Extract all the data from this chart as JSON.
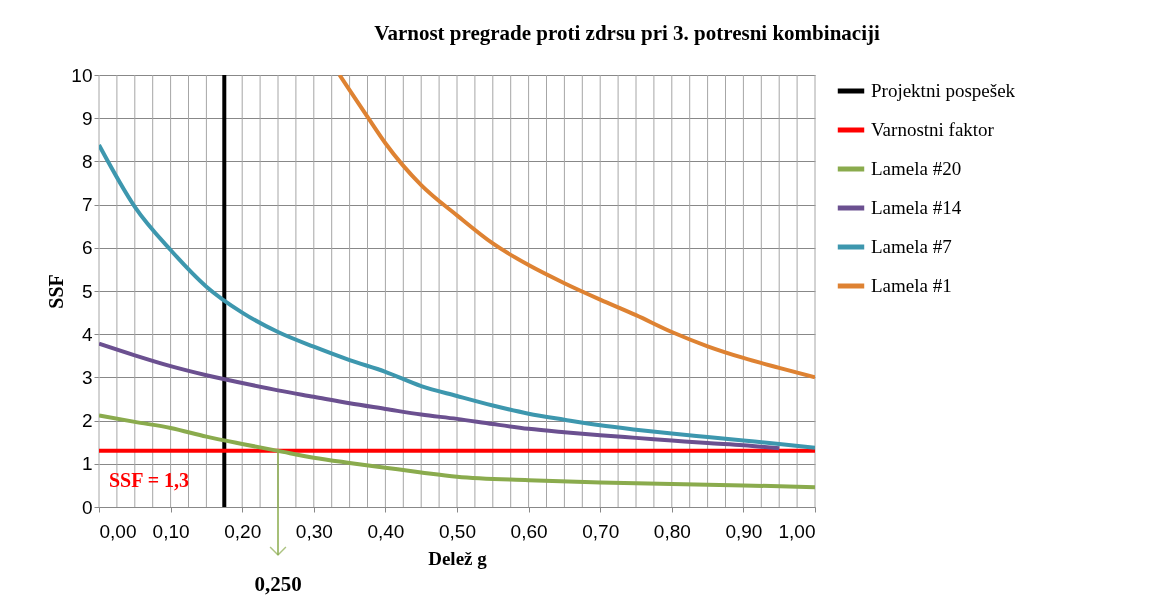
{
  "chart_data": {
    "type": "line",
    "title": "Varnost pregrade proti zdrsu pri 3. potresni kombinaciji",
    "xlabel": "Delež g",
    "ylabel": "SSF",
    "xlim": [
      0,
      1
    ],
    "ylim": [
      0,
      10
    ],
    "xticks": [
      {
        "value": 0,
        "label": "0,00"
      },
      {
        "value": 0.025,
        "label": null
      },
      {
        "value": 0.05,
        "label": null
      },
      {
        "value": 0.075,
        "label": null
      },
      {
        "value": 0.1,
        "label": "0,10"
      },
      {
        "value": 0.125,
        "label": null
      },
      {
        "value": 0.15,
        "label": null
      },
      {
        "value": 0.175,
        "label": null
      },
      {
        "value": 0.2,
        "label": "0,20"
      },
      {
        "value": 0.225,
        "label": null
      },
      {
        "value": 0.25,
        "label": null
      },
      {
        "value": 0.275,
        "label": null
      },
      {
        "value": 0.3,
        "label": "0,30"
      },
      {
        "value": 0.325,
        "label": null
      },
      {
        "value": 0.35,
        "label": null
      },
      {
        "value": 0.375,
        "label": null
      },
      {
        "value": 0.4,
        "label": "0,40"
      },
      {
        "value": 0.425,
        "label": null
      },
      {
        "value": 0.45,
        "label": null
      },
      {
        "value": 0.475,
        "label": null
      },
      {
        "value": 0.5,
        "label": "0,50"
      },
      {
        "value": 0.525,
        "label": null
      },
      {
        "value": 0.55,
        "label": null
      },
      {
        "value": 0.575,
        "label": null
      },
      {
        "value": 0.6,
        "label": "0,60"
      },
      {
        "value": 0.625,
        "label": null
      },
      {
        "value": 0.65,
        "label": null
      },
      {
        "value": 0.675,
        "label": null
      },
      {
        "value": 0.7,
        "label": "0,70"
      },
      {
        "value": 0.725,
        "label": null
      },
      {
        "value": 0.75,
        "label": null
      },
      {
        "value": 0.775,
        "label": null
      },
      {
        "value": 0.8,
        "label": "0,80"
      },
      {
        "value": 0.825,
        "label": null
      },
      {
        "value": 0.85,
        "label": null
      },
      {
        "value": 0.875,
        "label": null
      },
      {
        "value": 0.9,
        "label": "0,90"
      },
      {
        "value": 0.925,
        "label": null
      },
      {
        "value": 0.95,
        "label": null
      },
      {
        "value": 0.975,
        "label": null
      },
      {
        "value": 1,
        "label": "1,00"
      }
    ],
    "yticks": [
      0,
      1,
      2,
      3,
      4,
      5,
      6,
      7,
      8,
      9,
      10
    ],
    "grid": true,
    "legend": "right",
    "series": [
      {
        "name": "Projektni pospešek",
        "color": "#000000",
        "x": [
          0.175,
          0.175
        ],
        "values": [
          0,
          10
        ]
      },
      {
        "name": "Varnostni faktor",
        "color": "#ff0000",
        "x": [
          0,
          1
        ],
        "values": [
          1.3,
          1.3
        ]
      },
      {
        "name": "Lamela #20",
        "color": "#8aab4d",
        "x": [
          0,
          0.05,
          0.1,
          0.15,
          0.2,
          0.25,
          0.3,
          0.35,
          0.4,
          0.45,
          0.5,
          0.6,
          0.7,
          0.8,
          0.9,
          1
        ],
        "values": [
          2.12,
          1.97,
          1.83,
          1.63,
          1.46,
          1.3,
          1.14,
          1.02,
          0.91,
          0.8,
          0.7,
          0.62,
          0.57,
          0.53,
          0.5,
          0.46
        ]
      },
      {
        "name": "Lamela #14",
        "color": "#6b5090",
        "x": [
          0,
          0.05,
          0.1,
          0.15,
          0.2,
          0.25,
          0.3,
          0.35,
          0.4,
          0.45,
          0.5,
          0.55,
          0.6,
          0.65,
          0.7,
          0.75,
          0.8,
          0.85,
          0.9,
          0.95
        ],
        "values": [
          3.78,
          3.51,
          3.26,
          3.05,
          2.87,
          2.7,
          2.55,
          2.4,
          2.27,
          2.14,
          2.04,
          1.92,
          1.81,
          1.73,
          1.66,
          1.6,
          1.54,
          1.48,
          1.43,
          1.36
        ]
      },
      {
        "name": "Lamela #7",
        "color": "#3d97ae",
        "x": [
          0,
          0.05,
          0.1,
          0.15,
          0.2,
          0.25,
          0.3,
          0.35,
          0.4,
          0.45,
          0.5,
          0.55,
          0.6,
          0.65,
          0.7,
          0.75,
          0.8,
          0.85,
          0.9,
          0.95,
          1
        ],
        "values": [
          8.38,
          6.95,
          5.95,
          5.1,
          4.5,
          4.05,
          3.71,
          3.4,
          3.13,
          2.8,
          2.57,
          2.35,
          2.16,
          2.02,
          1.89,
          1.79,
          1.7,
          1.62,
          1.54,
          1.46,
          1.37
        ]
      },
      {
        "name": "Lamela #1",
        "color": "#de8232",
        "x": [
          0.336,
          0.35,
          0.375,
          0.4,
          0.45,
          0.5,
          0.55,
          0.6,
          0.65,
          0.7,
          0.75,
          0.8,
          0.85,
          0.9,
          0.95,
          1
        ],
        "values": [
          10,
          9.65,
          9.03,
          8.42,
          7.45,
          6.75,
          6.1,
          5.6,
          5.18,
          4.8,
          4.44,
          4.05,
          3.72,
          3.45,
          3.22,
          3.0
        ]
      }
    ],
    "annotations": [
      "SSF = 1,3",
      {
        "text": "0,250",
        "x": 0.25,
        "y": 1.3
      }
    ]
  }
}
